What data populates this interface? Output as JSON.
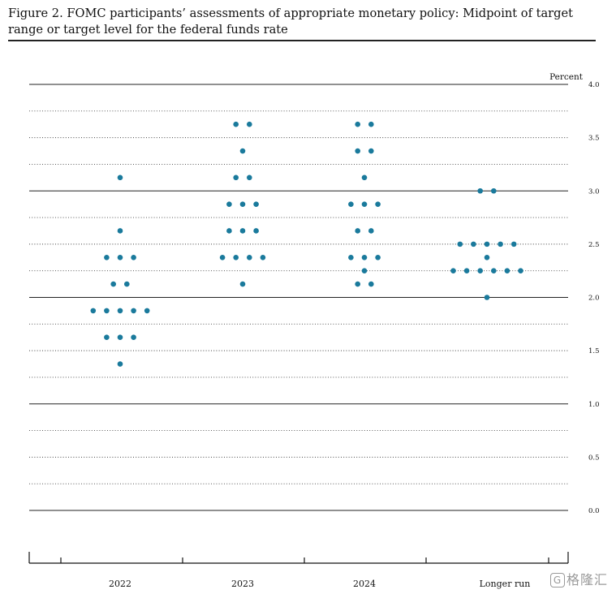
{
  "figure": {
    "title": "Figure 2.  FOMC participants’ assessments of appropriate monetary policy:  Midpoint of target range or target level for the federal funds rate"
  },
  "watermark": {
    "badge": "G",
    "text": "格隆汇"
  },
  "chart_data": {
    "type": "scatter",
    "title": "",
    "xlabel": "",
    "ylabel": "Percent",
    "ylim": [
      0,
      4.0
    ],
    "yticks": [
      "0.0",
      "0.5",
      "1.0",
      "1.5",
      "2.0",
      "2.5",
      "3.0",
      "3.5",
      "4.0"
    ],
    "grid": true,
    "categories": [
      "2022",
      "2023",
      "2024",
      "Longer run"
    ],
    "series": [
      {
        "category": "2022",
        "points": [
          {
            "y": 3.125,
            "count": 1
          },
          {
            "y": 2.625,
            "count": 1
          },
          {
            "y": 2.375,
            "count": 3
          },
          {
            "y": 2.125,
            "count": 2
          },
          {
            "y": 1.875,
            "count": 5
          },
          {
            "y": 1.625,
            "count": 3
          },
          {
            "y": 1.375,
            "count": 1
          }
        ]
      },
      {
        "category": "2023",
        "points": [
          {
            "y": 3.625,
            "count": 2
          },
          {
            "y": 3.375,
            "count": 1
          },
          {
            "y": 3.125,
            "count": 2
          },
          {
            "y": 2.875,
            "count": 3
          },
          {
            "y": 2.625,
            "count": 3
          },
          {
            "y": 2.375,
            "count": 4
          },
          {
            "y": 2.125,
            "count": 1
          }
        ]
      },
      {
        "category": "2024",
        "points": [
          {
            "y": 3.625,
            "count": 2
          },
          {
            "y": 3.375,
            "count": 2
          },
          {
            "y": 3.125,
            "count": 1
          },
          {
            "y": 2.875,
            "count": 3
          },
          {
            "y": 2.625,
            "count": 2
          },
          {
            "y": 2.375,
            "count": 3
          },
          {
            "y": 2.25,
            "count": 1
          },
          {
            "y": 2.125,
            "count": 2
          }
        ]
      },
      {
        "category": "Longer run",
        "points": [
          {
            "y": 3.0,
            "count": 2
          },
          {
            "y": 2.5,
            "count": 5
          },
          {
            "y": 2.375,
            "count": 1
          },
          {
            "y": 2.25,
            "count": 6
          },
          {
            "y": 2.0,
            "count": 1
          }
        ]
      }
    ],
    "colors": {
      "dot": "#1a7a9c",
      "solid_line": "#222222",
      "dotted_line": "#444444"
    }
  }
}
